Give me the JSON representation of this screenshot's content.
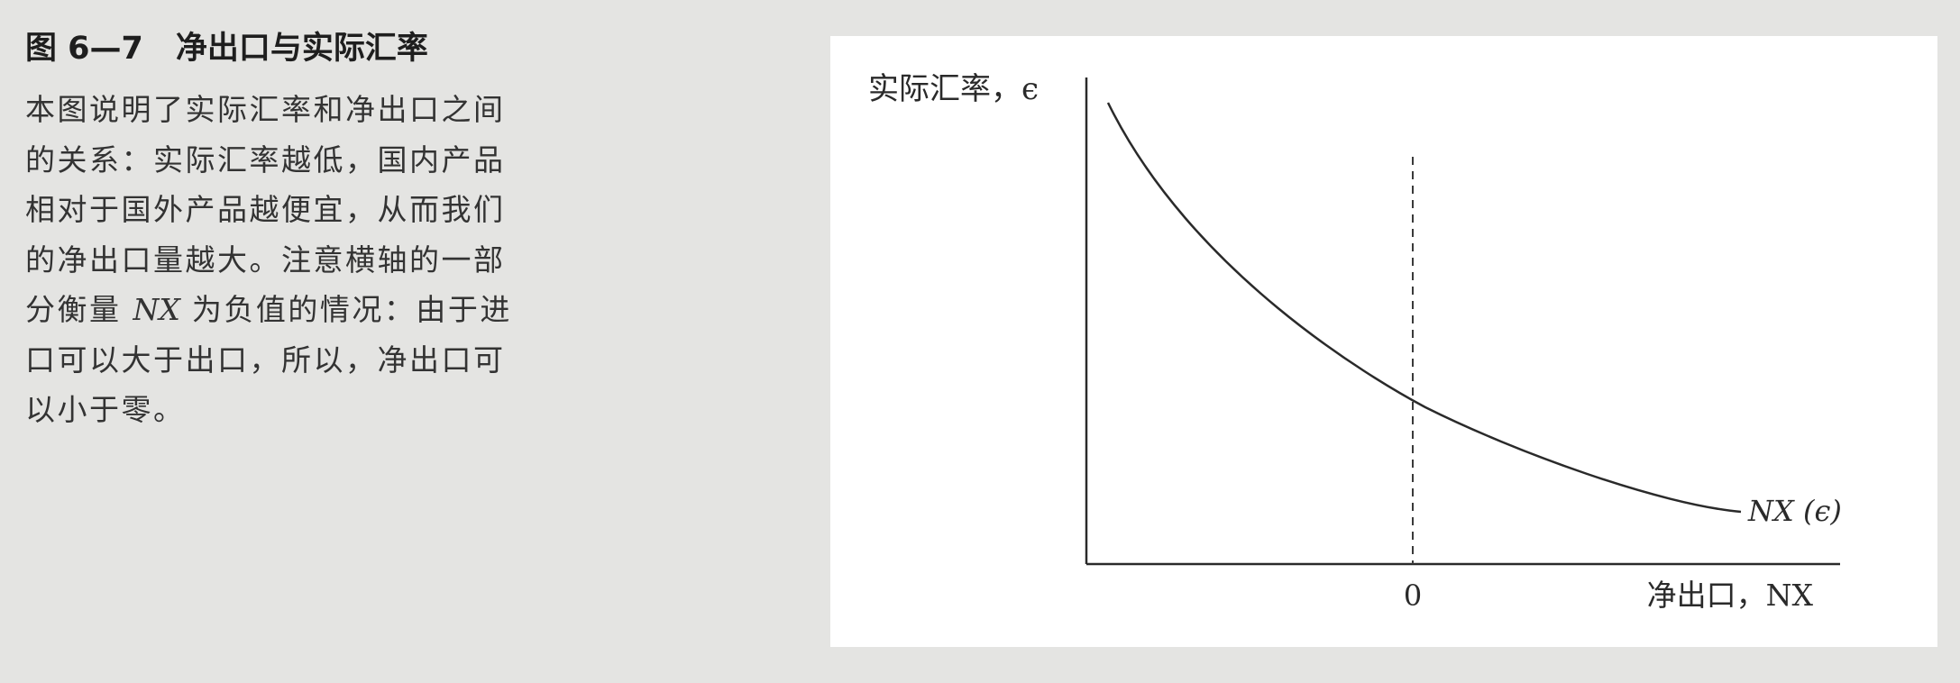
{
  "caption": {
    "figure_number": "图 6—7",
    "title": "净出口与实际汇率",
    "lines": [
      {
        "pre": "本图说明了实际汇率和净出口之间"
      },
      {
        "pre": "的关系：实际汇率越低，国内产品"
      },
      {
        "pre": "相对于国外产品越便宜，从而我们"
      },
      {
        "pre": "的净出口量越大。注意横轴的一部"
      },
      {
        "pre": "分衡量 ",
        "math": "NX",
        "post": " 为负值的情况：由于进"
      },
      {
        "pre": "口可以大于出口，所以，净出口可"
      },
      {
        "pre": "以小于零。"
      }
    ]
  },
  "chart_data": {
    "type": "line",
    "title": "",
    "ylabel": "实际汇率，ϵ",
    "xlabel": "净出口，NX",
    "x_ticks": [
      "0"
    ],
    "ylim": null,
    "xlim": null,
    "grid": false,
    "legend": "none",
    "series": [
      {
        "name": "NX (ϵ)",
        "shape": "downward-sloping convex curve",
        "crosses_x_zero": true
      }
    ],
    "reference_lines": [
      {
        "orientation": "vertical",
        "x": 0,
        "style": "dashed"
      }
    ]
  },
  "colors": {
    "page_background": "#e4e4e2",
    "card_background": "#ffffff",
    "ink": "#2a2a2a"
  }
}
